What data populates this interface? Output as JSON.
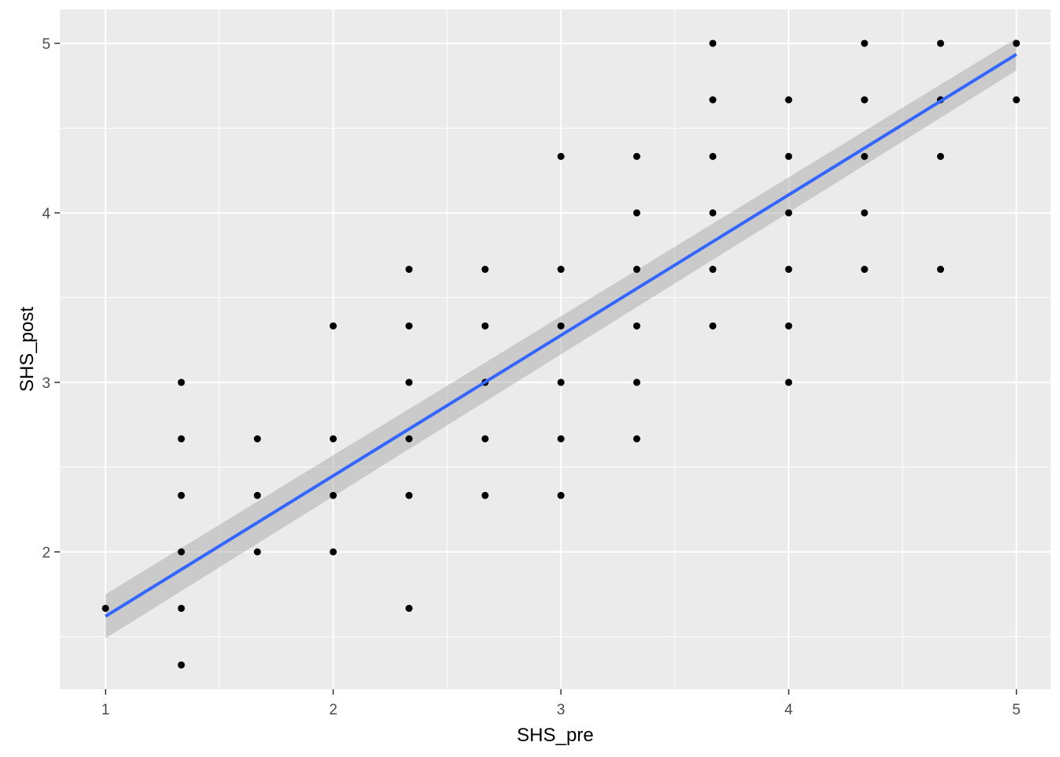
{
  "chart_data": {
    "type": "scatter",
    "xlabel": "SHS_pre",
    "ylabel": "SHS_post",
    "xlim": [
      0.8,
      5.15
    ],
    "ylim": [
      1.19,
      5.2
    ],
    "x_ticks": [
      1,
      2,
      3,
      4,
      5
    ],
    "y_ticks": [
      2,
      3,
      4,
      5
    ],
    "grid": true,
    "points": [
      {
        "x": 1.0,
        "y": 1.667
      },
      {
        "x": 1.333,
        "y": 1.333
      },
      {
        "x": 1.333,
        "y": 1.667
      },
      {
        "x": 1.333,
        "y": 2.0
      },
      {
        "x": 1.333,
        "y": 2.333
      },
      {
        "x": 1.333,
        "y": 2.667
      },
      {
        "x": 1.333,
        "y": 3.0
      },
      {
        "x": 1.667,
        "y": 2.0
      },
      {
        "x": 1.667,
        "y": 2.333
      },
      {
        "x": 1.667,
        "y": 2.667
      },
      {
        "x": 2.0,
        "y": 2.0
      },
      {
        "x": 2.0,
        "y": 2.333
      },
      {
        "x": 2.0,
        "y": 2.667
      },
      {
        "x": 2.0,
        "y": 3.333
      },
      {
        "x": 2.333,
        "y": 1.667
      },
      {
        "x": 2.333,
        "y": 2.333
      },
      {
        "x": 2.333,
        "y": 2.667
      },
      {
        "x": 2.333,
        "y": 3.0
      },
      {
        "x": 2.333,
        "y": 3.333
      },
      {
        "x": 2.333,
        "y": 3.667
      },
      {
        "x": 2.667,
        "y": 2.333
      },
      {
        "x": 2.667,
        "y": 2.667
      },
      {
        "x": 2.667,
        "y": 3.0
      },
      {
        "x": 2.667,
        "y": 3.333
      },
      {
        "x": 2.667,
        "y": 3.667
      },
      {
        "x": 3.0,
        "y": 2.333
      },
      {
        "x": 3.0,
        "y": 2.667
      },
      {
        "x": 3.0,
        "y": 3.0
      },
      {
        "x": 3.0,
        "y": 3.333
      },
      {
        "x": 3.0,
        "y": 3.667
      },
      {
        "x": 3.0,
        "y": 4.333
      },
      {
        "x": 3.333,
        "y": 2.667
      },
      {
        "x": 3.333,
        "y": 3.0
      },
      {
        "x": 3.333,
        "y": 3.333
      },
      {
        "x": 3.333,
        "y": 3.667
      },
      {
        "x": 3.333,
        "y": 4.0
      },
      {
        "x": 3.333,
        "y": 4.333
      },
      {
        "x": 3.667,
        "y": 3.333
      },
      {
        "x": 3.667,
        "y": 3.667
      },
      {
        "x": 3.667,
        "y": 4.0
      },
      {
        "x": 3.667,
        "y": 4.333
      },
      {
        "x": 3.667,
        "y": 4.667
      },
      {
        "x": 3.667,
        "y": 5.0
      },
      {
        "x": 4.0,
        "y": 3.0
      },
      {
        "x": 4.0,
        "y": 3.333
      },
      {
        "x": 4.0,
        "y": 3.667
      },
      {
        "x": 4.0,
        "y": 4.0
      },
      {
        "x": 4.0,
        "y": 4.333
      },
      {
        "x": 4.0,
        "y": 4.667
      },
      {
        "x": 4.333,
        "y": 3.667
      },
      {
        "x": 4.333,
        "y": 4.0
      },
      {
        "x": 4.333,
        "y": 4.333
      },
      {
        "x": 4.333,
        "y": 4.667
      },
      {
        "x": 4.333,
        "y": 5.0
      },
      {
        "x": 4.667,
        "y": 3.667
      },
      {
        "x": 4.667,
        "y": 4.333
      },
      {
        "x": 4.667,
        "y": 4.667
      },
      {
        "x": 4.667,
        "y": 5.0
      },
      {
        "x": 5.0,
        "y": 4.667
      },
      {
        "x": 5.0,
        "y": 5.0
      }
    ],
    "fit_line": {
      "method": "linear",
      "x": [
        1.0,
        5.0
      ],
      "y": [
        1.62,
        4.935
      ],
      "ci_upper": [
        1.75,
        5.03
      ],
      "ci_lower": [
        1.49,
        4.84
      ],
      "color": "#3366FF",
      "band_color": "#999999"
    },
    "colors": {
      "panel_background": "#EBEBEB",
      "grid": "#FFFFFF",
      "point": "#000000"
    }
  }
}
